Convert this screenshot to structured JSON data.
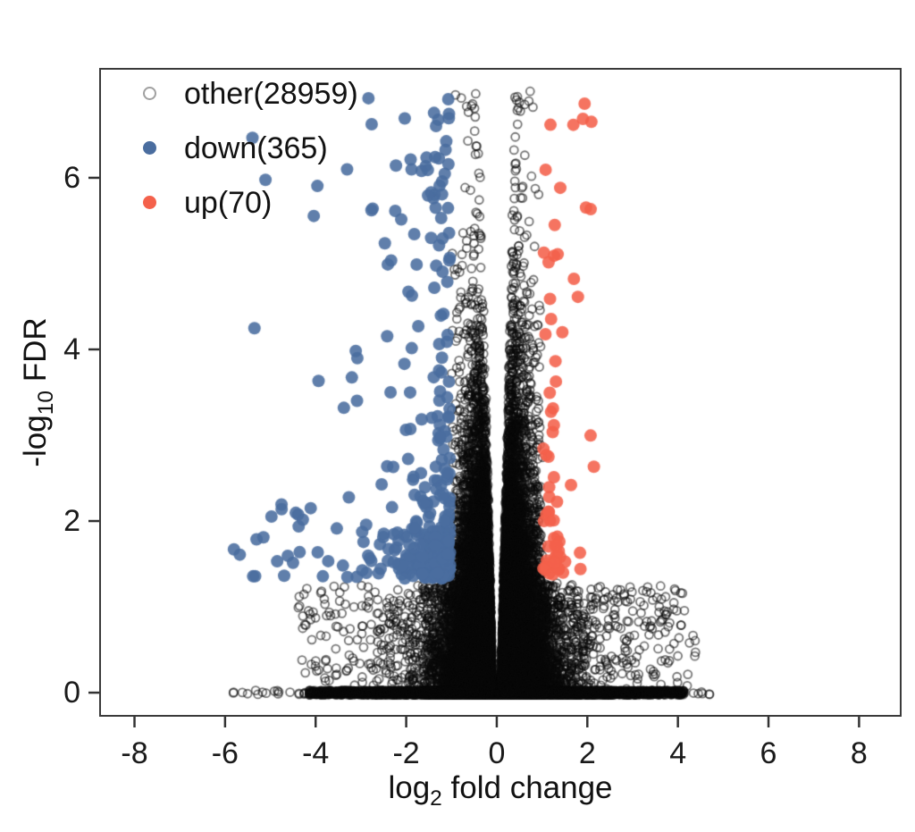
{
  "figure": {
    "background": "#ffffff",
    "plot_border_color": "#3a3a3a",
    "tick_color": "#333333"
  },
  "chart_data": {
    "type": "scatter",
    "variant": "volcano-plot",
    "title": "",
    "xlabel": {
      "pre": "log",
      "sub": "2",
      "post": " fold change"
    },
    "ylabel": {
      "pre": "-log",
      "sub": "10",
      "post": " FDR"
    },
    "xlim": [
      -8.76,
      8.92
    ],
    "ylim": [
      -0.27,
      7.27
    ],
    "x_ticks": [
      "-8",
      "-6",
      "-4",
      "-2",
      "0",
      "2",
      "4",
      "6",
      "8"
    ],
    "x_tick_values": [
      -8,
      -6,
      -4,
      -2,
      0,
      2,
      4,
      6,
      8
    ],
    "y_ticks": [
      "0",
      "2",
      "4",
      "6"
    ],
    "y_tick_values": [
      0,
      2,
      4,
      6
    ],
    "grid": false,
    "legend_position": "top-left-inside",
    "series": [
      {
        "name": "other",
        "label": "other(28959)",
        "count": 28959,
        "marker": "open-circle",
        "stroke_color": "#0a0a0a",
        "legend_marker_color": "#a0a0a0"
      },
      {
        "name": "down",
        "label": "down(365)",
        "count": 365,
        "marker": "filled-circle",
        "color": "#4a6d9f",
        "legend_marker_color": "#4a6d9f"
      },
      {
        "name": "up",
        "label": "up(70)",
        "count": 70,
        "marker": "filled-circle",
        "color": "#f4614b",
        "legend_marker_color": "#f4614b"
      }
    ],
    "generator": {
      "note": "procedural parameters reproducing the point cloud depicted",
      "seed": 1337,
      "other": {
        "count": 28959,
        "baseline": {
          "frac": 0.3,
          "sigma": 1.4,
          "uniform_frac": 0.15,
          "uniform_halfwidth": 4.15,
          "left_tail_frac": 0.002,
          "left_tail_min": -6.0,
          "left_tail_max": -4.1,
          "right_tail_frac": 0.0012,
          "right_tail_min": 3.95,
          "right_tail_max": 4.7,
          "y_jitter": 0.025
        },
        "scatter": {
          "frac": 0.022,
          "x_min": 1.0,
          "x_span": 3.4,
          "y_min": 0.08,
          "y_max": 1.25
        },
        "mass": {
          "y_mean": 0.9,
          "y_cap": 7.02,
          "inner_a": 0.1,
          "inner_b": 0.045,
          "width_base": 0.33,
          "width_slope": -0.02,
          "width_min": 0.17,
          "color_gate_x": 0.995,
          "color_gate_y": 1.28
        }
      },
      "down": {
        "count": 365,
        "x_edge": -1.03,
        "x_exp_mean": 0.5,
        "wide_frac": 0.1,
        "wide_min": -6.0,
        "wide_max": -2.2,
        "x_min": -6.05,
        "y_edge": 1.33,
        "y_exp_mean": 0.35,
        "y_uniform_frac": 0.38,
        "y_uniform_min": 1.5,
        "y_uniform_max": 6.95,
        "y_cap": 6.95
      },
      "up": {
        "count": 70,
        "x_edge": 1.03,
        "x_exp_mean": 0.38,
        "x_cap": 2.55,
        "y_edge": 1.36,
        "y_exp_mean": 0.4,
        "y_uniform_frac": 0.42,
        "y_uniform_min": 1.6,
        "y_uniform_max": 6.9,
        "y_cap": 6.9
      },
      "marker_px": {
        "other_radius": 4.5,
        "other_line_width": 1.8,
        "other_alpha": 0.55,
        "dot_radius": 7,
        "dot_alpha": 0.88
      }
    }
  }
}
